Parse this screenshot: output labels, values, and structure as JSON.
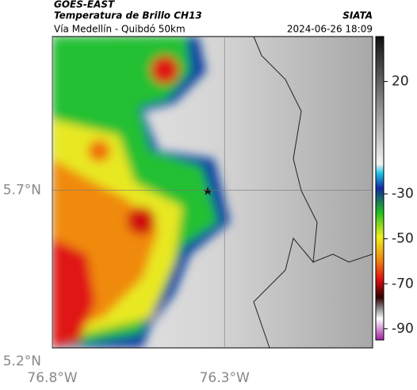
{
  "header": {
    "source": "GOES-EAST",
    "title": "Temperatura de Brillo CH13",
    "agency": "SIATA",
    "subtitle": "Vía Medellín - Quibdó 50km",
    "timestamp": "2024-06-26 18:09"
  },
  "map": {
    "xlim": [
      -76.8,
      -75.87
    ],
    "ylim": [
      5.2,
      6.15
    ],
    "xticks": [
      {
        "value": -76.8,
        "label": "76.8°W"
      },
      {
        "value": -76.3,
        "label": "76.3°W"
      }
    ],
    "yticks": [
      {
        "value": 5.2,
        "label": "5.2°N"
      },
      {
        "value": 5.7,
        "label": "5.7°N"
      }
    ]
  },
  "colorbar": {
    "clim": [
      40,
      -95
    ],
    "ticks": [
      20,
      -30,
      -50,
      -70,
      -90
    ]
  }
}
